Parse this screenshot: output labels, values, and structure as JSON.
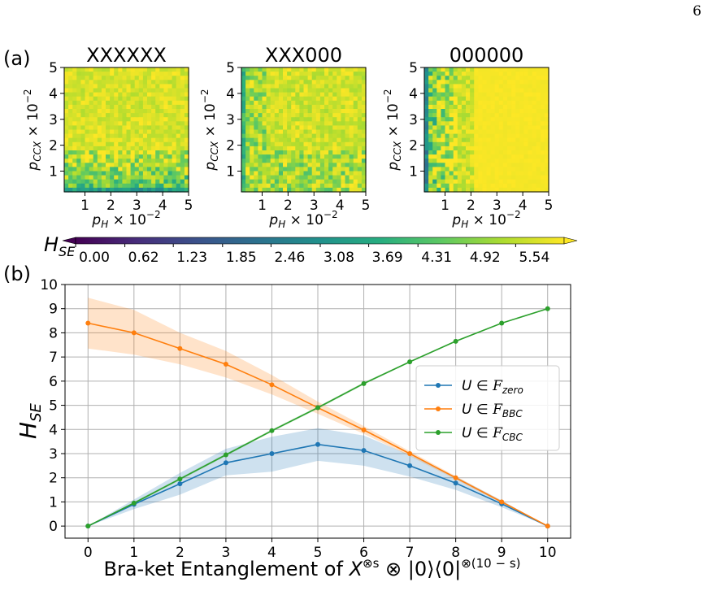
{
  "page_number": "6",
  "colors": {
    "zero": "#1f77b4",
    "bbc": "#ff7f0e",
    "cbc": "#2ca02c",
    "grid": "#b0b0b0",
    "viridis": [
      "#440154",
      "#472d7b",
      "#3b528b",
      "#2c728e",
      "#21918c",
      "#28ae80",
      "#5ec962",
      "#addc30",
      "#fde725"
    ]
  },
  "panel_a": {
    "label": "(a)",
    "heatmaps": [
      {
        "title": "XXXXXX",
        "pattern": "bottom-low"
      },
      {
        "title": "XXX000",
        "pattern": "mostly-high"
      },
      {
        "title": "000000",
        "pattern": "left-low"
      }
    ],
    "x_ticks": [
      "1",
      "2",
      "3",
      "4",
      "5"
    ],
    "y_ticks": [
      "1",
      "2",
      "3",
      "4",
      "5"
    ],
    "xlabel": "p_H × 10^{−2}",
    "ylabel": "p_CCX × 10^{−2}",
    "colorbar": {
      "label": "H_SE",
      "ticks": [
        "0.00",
        "0.62",
        "1.23",
        "1.85",
        "2.46",
        "3.08",
        "3.69",
        "4.31",
        "4.92",
        "5.54"
      ],
      "range": [
        0.0,
        6.15
      ]
    }
  },
  "chart_data": [
    {
      "type": "heatmap",
      "title": "XXXXXX",
      "xlabel": "p_H × 10^{−2}",
      "ylabel": "p_CCX × 10^{−2}",
      "xlim": [
        0.2,
        5
      ],
      "ylim": [
        0.2,
        5
      ],
      "note": "values approximate: low H_SE along bottom rows, saturated (~5.5+) elsewhere"
    },
    {
      "type": "heatmap",
      "title": "XXX000",
      "xlabel": "p_H × 10^{−2}",
      "ylabel": "p_CCX × 10^{−2}",
      "xlim": [
        0.2,
        5
      ],
      "ylim": [
        0.2,
        5
      ]
    },
    {
      "type": "heatmap",
      "title": "000000",
      "xlabel": "p_H × 10^{−2}",
      "ylabel": "p_CCX × 10^{−2}",
      "xlim": [
        0.2,
        5
      ],
      "ylim": [
        0.2,
        5
      ]
    },
    {
      "type": "line",
      "panel_label": "(b)",
      "xlabel": "Bra-ket Entanglement of X^{⊗s} ⊗ |0⟩⟨0|^{⊗(10 − s)}",
      "ylabel": "H_SE",
      "x": [
        0,
        1,
        2,
        3,
        4,
        5,
        6,
        7,
        8,
        9,
        10
      ],
      "xlim": [
        -0.5,
        10.5
      ],
      "ylim": [
        -0.5,
        10
      ],
      "yticks": [
        0,
        1,
        2,
        3,
        4,
        5,
        6,
        7,
        8,
        9,
        10
      ],
      "grid": true,
      "legend_position": "center-right",
      "series": [
        {
          "name": "U ∈ F_zero",
          "color": "#1f77b4",
          "values": [
            0,
            0.9,
            1.75,
            2.62,
            3.0,
            3.38,
            3.13,
            2.5,
            1.78,
            0.92,
            0
          ],
          "lower": [
            0,
            0.7,
            1.3,
            2.1,
            2.25,
            2.7,
            2.5,
            2.05,
            1.5,
            0.78,
            0
          ],
          "upper": [
            0,
            1.1,
            2.2,
            3.2,
            3.7,
            4.05,
            3.75,
            2.95,
            2.05,
            1.06,
            0
          ]
        },
        {
          "name": "U ∈ F_BBC",
          "color": "#ff7f0e",
          "values": [
            8.4,
            8.0,
            7.35,
            6.7,
            5.85,
            4.9,
            3.98,
            3.0,
            2.0,
            1.0,
            0
          ],
          "lower": [
            7.35,
            7.1,
            6.7,
            6.15,
            5.45,
            4.65,
            3.82,
            2.9,
            1.93,
            0.95,
            0
          ],
          "upper": [
            9.45,
            8.95,
            8.0,
            7.25,
            6.25,
            5.15,
            4.14,
            3.1,
            2.07,
            1.05,
            0
          ]
        },
        {
          "name": "U ∈ F_CBC",
          "color": "#2ca02c",
          "values": [
            0,
            0.95,
            1.95,
            2.95,
            3.95,
            4.9,
            5.9,
            6.8,
            7.65,
            8.4,
            9.0
          ],
          "lower": [
            0,
            0.9,
            1.9,
            2.9,
            3.9,
            4.85,
            5.85,
            6.77,
            7.62,
            8.38,
            9.0
          ],
          "upper": [
            0,
            1.0,
            2.0,
            3.0,
            4.0,
            4.95,
            5.95,
            6.83,
            7.68,
            8.42,
            9.0
          ]
        }
      ]
    }
  ]
}
